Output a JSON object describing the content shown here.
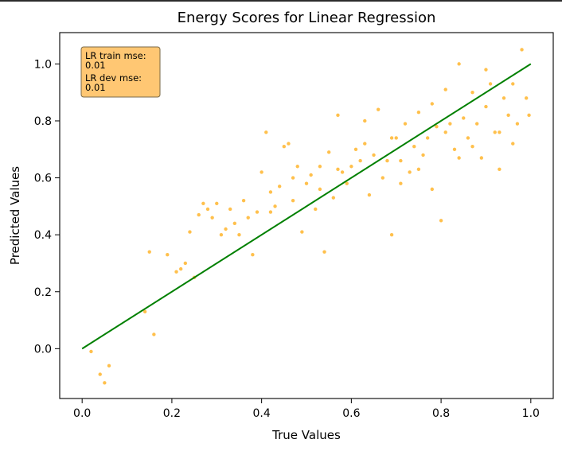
{
  "chart_data": {
    "type": "scatter",
    "title": "Energy Scores for Linear Regression",
    "xlabel": "True Values",
    "ylabel": "Predicted Values",
    "xlim": [
      -0.05,
      1.05
    ],
    "ylim": [
      -0.175,
      1.11
    ],
    "xticks": [
      0.0,
      0.2,
      0.4,
      0.6,
      0.8,
      1.0
    ],
    "yticks": [
      0.0,
      0.2,
      0.4,
      0.6,
      0.8,
      1.0
    ],
    "xtick_labels": [
      "0.0",
      "0.2",
      "0.4",
      "0.6",
      "0.8",
      "1.0"
    ],
    "ytick_labels": [
      "0.0",
      "0.2",
      "0.4",
      "0.6",
      "0.8",
      "1.0"
    ],
    "grid": false,
    "series": [
      {
        "kind": "scatter",
        "color": "#ffa500",
        "opacity": 0.7,
        "points": [
          [
            0.02,
            -0.01
          ],
          [
            0.04,
            -0.09
          ],
          [
            0.05,
            -0.12
          ],
          [
            0.06,
            -0.06
          ],
          [
            0.14,
            0.13
          ],
          [
            0.15,
            0.34
          ],
          [
            0.16,
            0.05
          ],
          [
            0.19,
            0.33
          ],
          [
            0.21,
            0.27
          ],
          [
            0.22,
            0.28
          ],
          [
            0.23,
            0.3
          ],
          [
            0.24,
            0.41
          ],
          [
            0.25,
            0.25
          ],
          [
            0.26,
            0.47
          ],
          [
            0.27,
            0.51
          ],
          [
            0.28,
            0.49
          ],
          [
            0.29,
            0.46
          ],
          [
            0.3,
            0.51
          ],
          [
            0.31,
            0.4
          ],
          [
            0.32,
            0.42
          ],
          [
            0.33,
            0.49
          ],
          [
            0.34,
            0.44
          ],
          [
            0.35,
            0.4
          ],
          [
            0.36,
            0.52
          ],
          [
            0.37,
            0.46
          ],
          [
            0.38,
            0.33
          ],
          [
            0.39,
            0.48
          ],
          [
            0.4,
            0.62
          ],
          [
            0.41,
            0.76
          ],
          [
            0.42,
            0.55
          ],
          [
            0.43,
            0.5
          ],
          [
            0.44,
            0.57
          ],
          [
            0.45,
            0.71
          ],
          [
            0.46,
            0.72
          ],
          [
            0.47,
            0.52
          ],
          [
            0.48,
            0.64
          ],
          [
            0.49,
            0.41
          ],
          [
            0.5,
            0.58
          ],
          [
            0.51,
            0.61
          ],
          [
            0.52,
            0.49
          ],
          [
            0.53,
            0.64
          ],
          [
            0.54,
            0.34
          ],
          [
            0.55,
            0.69
          ],
          [
            0.56,
            0.53
          ],
          [
            0.57,
            0.82
          ],
          [
            0.58,
            0.62
          ],
          [
            0.59,
            0.58
          ],
          [
            0.6,
            0.64
          ],
          [
            0.61,
            0.7
          ],
          [
            0.62,
            0.66
          ],
          [
            0.63,
            0.72
          ],
          [
            0.64,
            0.54
          ],
          [
            0.65,
            0.68
          ],
          [
            0.66,
            0.84
          ],
          [
            0.67,
            0.6
          ],
          [
            0.68,
            0.66
          ],
          [
            0.69,
            0.4
          ],
          [
            0.7,
            0.74
          ],
          [
            0.71,
            0.66
          ],
          [
            0.72,
            0.79
          ],
          [
            0.73,
            0.62
          ],
          [
            0.74,
            0.71
          ],
          [
            0.75,
            0.83
          ],
          [
            0.76,
            0.68
          ],
          [
            0.77,
            0.74
          ],
          [
            0.78,
            0.56
          ],
          [
            0.79,
            0.78
          ],
          [
            0.8,
            0.45
          ],
          [
            0.81,
            0.76
          ],
          [
            0.82,
            0.79
          ],
          [
            0.83,
            0.7
          ],
          [
            0.84,
            1.0
          ],
          [
            0.85,
            0.81
          ],
          [
            0.86,
            0.74
          ],
          [
            0.87,
            0.9
          ],
          [
            0.88,
            0.79
          ],
          [
            0.89,
            0.67
          ],
          [
            0.9,
            0.85
          ],
          [
            0.91,
            0.93
          ],
          [
            0.92,
            0.76
          ],
          [
            0.93,
            0.63
          ],
          [
            0.94,
            0.88
          ],
          [
            0.95,
            0.82
          ],
          [
            0.96,
            0.93
          ],
          [
            0.97,
            0.79
          ],
          [
            0.98,
            1.05
          ],
          [
            0.99,
            0.88
          ],
          [
            0.996,
            0.82
          ],
          [
            0.63,
            0.8
          ],
          [
            0.69,
            0.74
          ],
          [
            0.75,
            0.63
          ],
          [
            0.81,
            0.91
          ],
          [
            0.87,
            0.71
          ],
          [
            0.93,
            0.76
          ],
          [
            0.57,
            0.63
          ],
          [
            0.53,
            0.56
          ],
          [
            0.47,
            0.6
          ],
          [
            0.42,
            0.48
          ],
          [
            0.71,
            0.58
          ],
          [
            0.78,
            0.86
          ],
          [
            0.84,
            0.67
          ],
          [
            0.9,
            0.98
          ],
          [
            0.96,
            0.72
          ]
        ]
      },
      {
        "kind": "line",
        "color": "#008000",
        "points": [
          [
            0.0,
            0.0
          ],
          [
            1.0,
            1.0
          ]
        ]
      }
    ],
    "annotation": {
      "lines": [
        "LR train mse:",
        "0.01",
        "LR dev mse:",
        "0.01"
      ],
      "position": "top-left",
      "box_color": "#ffc773",
      "edge_color": "#7a6a48"
    }
  }
}
